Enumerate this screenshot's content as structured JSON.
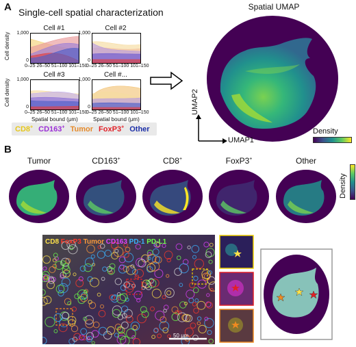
{
  "panel_a": {
    "letter": "A",
    "title": "Single-cell spatial characterization",
    "cells": [
      {
        "title": "Cell #1"
      },
      {
        "title": "Cell #2"
      },
      {
        "title": "Cell #3"
      },
      {
        "title": "Cell #..."
      }
    ],
    "ylabel": "Cell density",
    "yticks": [
      "1,000",
      "0"
    ],
    "xticks": [
      "0–25",
      "26–50",
      "51–100",
      "101–150"
    ],
    "xlabel": "Spatial bound (μm)",
    "legend": [
      {
        "label": "CD8",
        "sup": "+",
        "color": "#e6c619"
      },
      {
        "label": "CD163",
        "sup": "+",
        "color": "#9b2fd6"
      },
      {
        "label": "Tumor",
        "sup": "",
        "color": "#e58a2a"
      },
      {
        "label": "FoxP3",
        "sup": "+",
        "color": "#e21f26"
      },
      {
        "label": "Other",
        "sup": "",
        "color": "#1c2fa8"
      }
    ],
    "umap_title": "Spatial UMAP",
    "umap1": "UMAP1",
    "umap2": "UMAP2",
    "density_label": "Density"
  },
  "panel_b": {
    "letter": "B",
    "maps": [
      {
        "label": "Tumor",
        "sup": ""
      },
      {
        "label": "CD163",
        "sup": "+"
      },
      {
        "label": "CD8",
        "sup": "+"
      },
      {
        "label": "FoxP3",
        "sup": "+"
      },
      {
        "label": "Other",
        "sup": ""
      }
    ],
    "density_label": "Density",
    "micro_legend": [
      {
        "label": "CD8",
        "color": "#ffe34a"
      },
      {
        "label": "FoxP3",
        "color": "#ff3a2a"
      },
      {
        "label": "Tumor",
        "color": "#ff9a3a"
      },
      {
        "label": "CD163",
        "color": "#e040ff"
      },
      {
        "label": "PD-1",
        "color": "#3ab4ff"
      },
      {
        "label": "PD-L1",
        "color": "#6cff4a"
      }
    ],
    "scalebar": "50 μm",
    "colors": {
      "umap_bg": "#440154",
      "bright": "#fde725"
    }
  }
}
